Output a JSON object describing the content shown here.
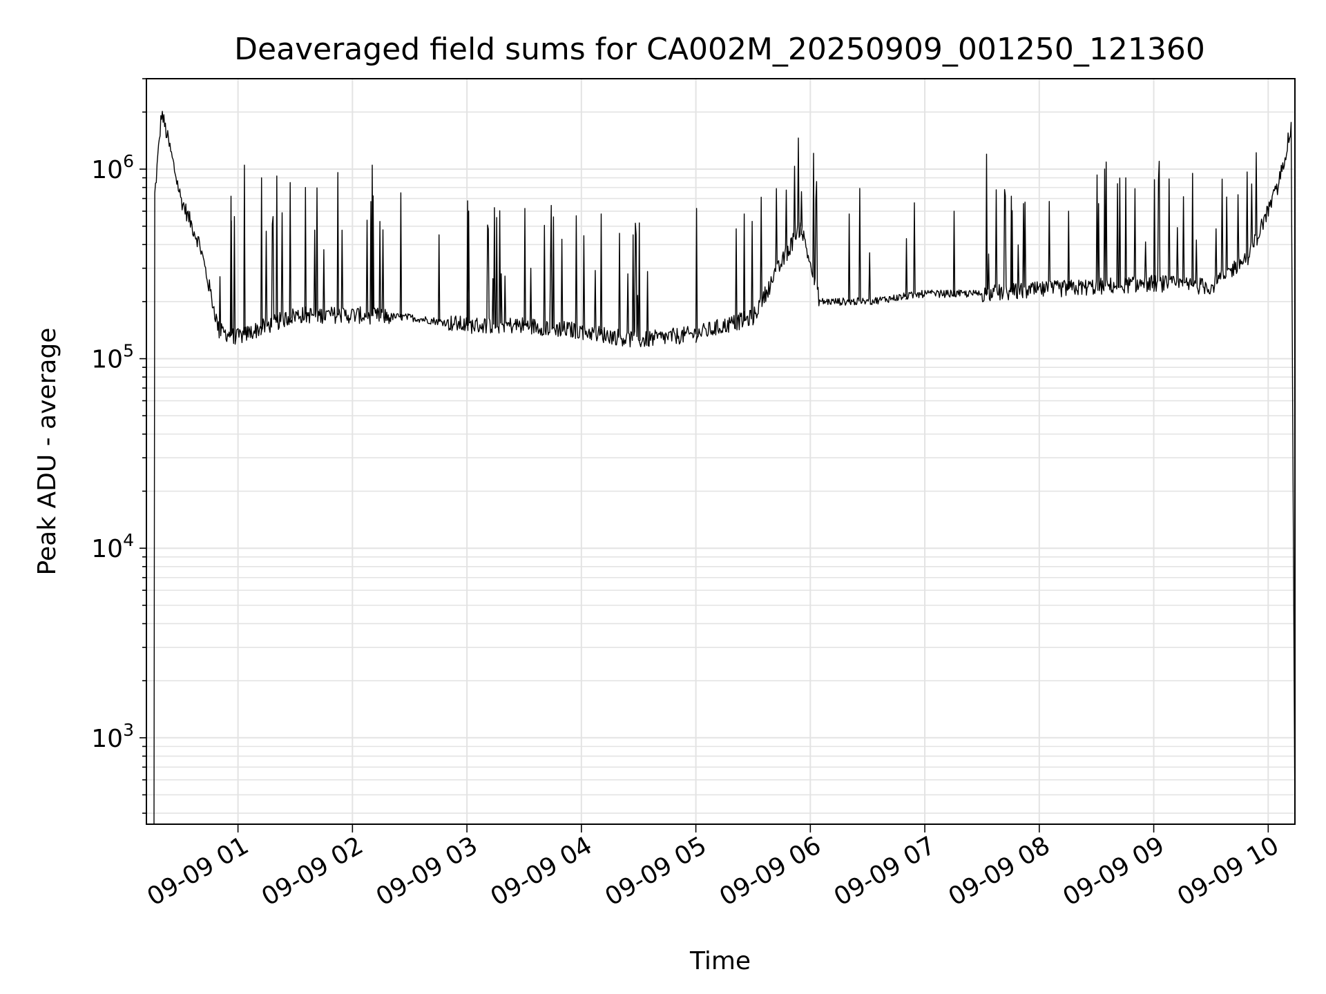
{
  "chart_data": {
    "type": "line",
    "title": "Deaveraged field sums for CA002M_20250909_001250_121360",
    "xlabel": "Time",
    "ylabel": "Peak ADU - average",
    "x_axis": {
      "kind": "time",
      "range": [
        "09-09 00:12",
        "09-09 10:14"
      ],
      "ticks": [
        "09-09 01",
        "09-09 02",
        "09-09 03",
        "09-09 04",
        "09-09 05",
        "09-09 06",
        "09-09 07",
        "09-09 08",
        "09-09 09",
        "09-09 10"
      ]
    },
    "y_axis": {
      "scale": "log",
      "range": [
        350,
        3000000
      ],
      "ticks": [
        {
          "value": 1000,
          "base": "10",
          "exp": "3"
        },
        {
          "value": 10000,
          "base": "10",
          "exp": "4"
        },
        {
          "value": 100000,
          "base": "10",
          "exp": "5"
        },
        {
          "value": 1000000,
          "base": "10",
          "exp": "6"
        }
      ]
    },
    "grid": true,
    "line_color": "#000000",
    "series": [
      {
        "baseline": [
          {
            "x": "09-09 00:16",
            "y": 350
          },
          {
            "x": "09-09 00:16",
            "y": 650000
          },
          {
            "x": "09-09 00:20",
            "y": 2000000
          },
          {
            "x": "09-09 00:25",
            "y": 1200000
          },
          {
            "x": "09-09 00:30",
            "y": 700000
          },
          {
            "x": "09-09 00:40",
            "y": 400000
          },
          {
            "x": "09-09 00:50",
            "y": 140000
          },
          {
            "x": "09-09 01:00",
            "y": 130000
          },
          {
            "x": "09-09 01:30",
            "y": 170000
          },
          {
            "x": "09-09 02:00",
            "y": 170000
          },
          {
            "x": "09-09 02:30",
            "y": 165000
          },
          {
            "x": "09-09 03:00",
            "y": 150000
          },
          {
            "x": "09-09 03:30",
            "y": 150000
          },
          {
            "x": "09-09 04:00",
            "y": 140000
          },
          {
            "x": "09-09 04:30",
            "y": 125000
          },
          {
            "x": "09-09 05:00",
            "y": 135000
          },
          {
            "x": "09-09 05:30",
            "y": 165000
          },
          {
            "x": "09-09 05:55",
            "y": 500000
          },
          {
            "x": "09-09 06:05",
            "y": 200000
          },
          {
            "x": "09-09 06:30",
            "y": 200000
          },
          {
            "x": "09-09 07:00",
            "y": 220000
          },
          {
            "x": "09-09 07:30",
            "y": 220000
          },
          {
            "x": "09-09 08:00",
            "y": 230000
          },
          {
            "x": "09-09 08:30",
            "y": 240000
          },
          {
            "x": "09-09 09:00",
            "y": 250000
          },
          {
            "x": "09-09 09:30",
            "y": 240000
          },
          {
            "x": "09-09 09:50",
            "y": 350000
          },
          {
            "x": "09-09 10:05",
            "y": 800000
          },
          {
            "x": "09-09 10:12",
            "y": 1650000
          },
          {
            "x": "09-09 10:14",
            "y": 350
          }
        ],
        "peaks": [
          {
            "x": "09-09 00:56",
            "y": 720000
          },
          {
            "x": "09-09 01:03",
            "y": 1050000
          },
          {
            "x": "09-09 01:12",
            "y": 900000
          },
          {
            "x": "09-09 01:20",
            "y": 920000
          },
          {
            "x": "09-09 01:27",
            "y": 850000
          },
          {
            "x": "09-09 01:35",
            "y": 800000
          },
          {
            "x": "09-09 01:52",
            "y": 960000
          },
          {
            "x": "09-09 02:10",
            "y": 1050000
          },
          {
            "x": "09-09 02:25",
            "y": 750000
          },
          {
            "x": "09-09 02:45",
            "y": 450000
          },
          {
            "x": "09-09 03:00",
            "y": 680000
          },
          {
            "x": "09-09 03:30",
            "y": 620000
          },
          {
            "x": "09-09 03:45",
            "y": 560000
          },
          {
            "x": "09-09 04:10",
            "y": 580000
          },
          {
            "x": "09-09 04:30",
            "y": 520000
          },
          {
            "x": "09-09 05:00",
            "y": 620000
          },
          {
            "x": "09-09 05:25",
            "y": 580000
          },
          {
            "x": "09-09 05:55",
            "y": 760000
          },
          {
            "x": "09-09 06:20",
            "y": 580000
          },
          {
            "x": "09-09 06:50",
            "y": 430000
          },
          {
            "x": "09-09 07:15",
            "y": 600000
          },
          {
            "x": "09-09 07:32",
            "y": 1200000
          },
          {
            "x": "09-09 07:45",
            "y": 720000
          },
          {
            "x": "09-09 08:15",
            "y": 600000
          },
          {
            "x": "09-09 08:45",
            "y": 900000
          },
          {
            "x": "09-09 09:00",
            "y": 880000
          },
          {
            "x": "09-09 09:20",
            "y": 950000
          }
        ]
      }
    ]
  }
}
